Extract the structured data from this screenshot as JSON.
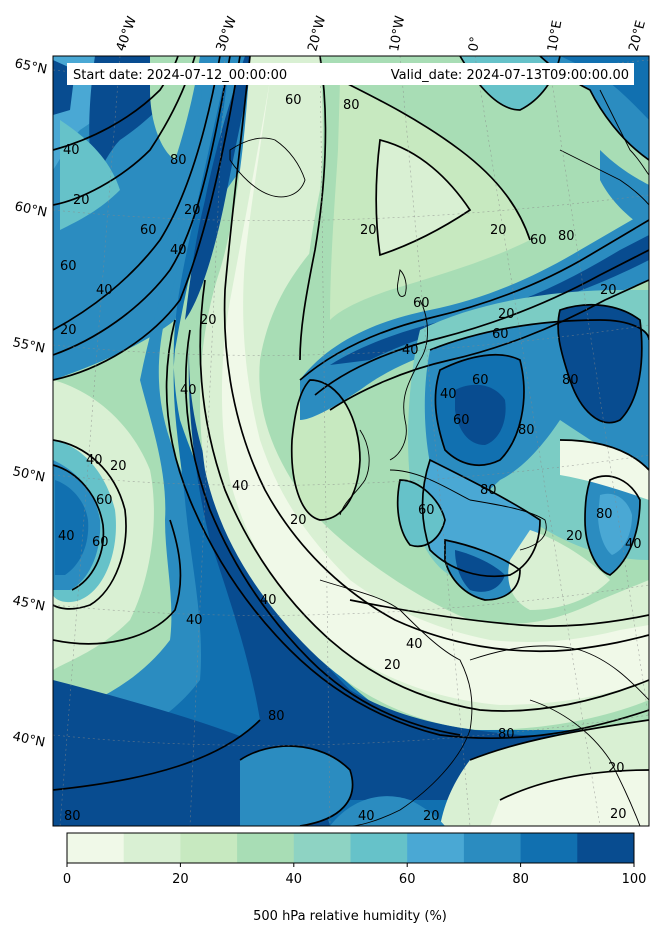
{
  "header": {
    "start_label": "Start date: 2024-07-12_00:00:00",
    "valid_label": "Valid_date: 2024-07-13T09:00:00.00"
  },
  "longitude_labels": [
    "40°W",
    "30°W",
    "20°W",
    "10°W",
    "0°",
    "10°E",
    "20°E"
  ],
  "latitude_labels": [
    "65°N",
    "60°N",
    "55°N",
    "50°N",
    "45°N",
    "40°N"
  ],
  "colors": {
    "levels": [
      "#f7fcf0",
      "#e0f3db",
      "#ccebc5",
      "#a8ddb5",
      "#7bccc4",
      "#4eb3d3",
      "#2b8cbe",
      "#0868ac",
      "#084081"
    ],
    "bin_0_10": "#f0f9e8",
    "bin_10_20": "#d9f0d3",
    "bin_20_30": "#c7e9c0",
    "bin_30_40": "#a8ddb5",
    "bin_40_50": "#8ed3c3",
    "bin_50_60": "#66c2c9",
    "bin_60_70": "#4aa8d4",
    "bin_70_80": "#2b8cc0",
    "bin_80_90": "#1170b0",
    "bin_90_100": "#084c90"
  },
  "colorbar": {
    "title": "500 hPa relative humidity (%)",
    "ticks": [
      "0",
      "20",
      "40",
      "60",
      "80",
      "100"
    ],
    "bins": [
      "#f0f9e8",
      "#d9f0d3",
      "#c7e9c0",
      "#a8ddb5",
      "#8ed3c3",
      "#66c2c9",
      "#4aa8d4",
      "#2b8cc0",
      "#1170b0",
      "#084c90"
    ]
  },
  "contour_labels": [
    "60",
    "80",
    "40",
    "80",
    "20",
    "60",
    "20",
    "40",
    "60",
    "20",
    "60",
    "40",
    "20",
    "20",
    "80",
    "20",
    "60",
    "60",
    "40",
    "80",
    "20",
    "40",
    "60",
    "20",
    "60",
    "40",
    "60",
    "40",
    "40",
    "20",
    "40",
    "60",
    "80",
    "60",
    "20",
    "80",
    "40",
    "20",
    "40",
    "80",
    "40",
    "80",
    "40",
    "20",
    "20",
    "80",
    "20",
    "40",
    "20",
    "80"
  ]
}
